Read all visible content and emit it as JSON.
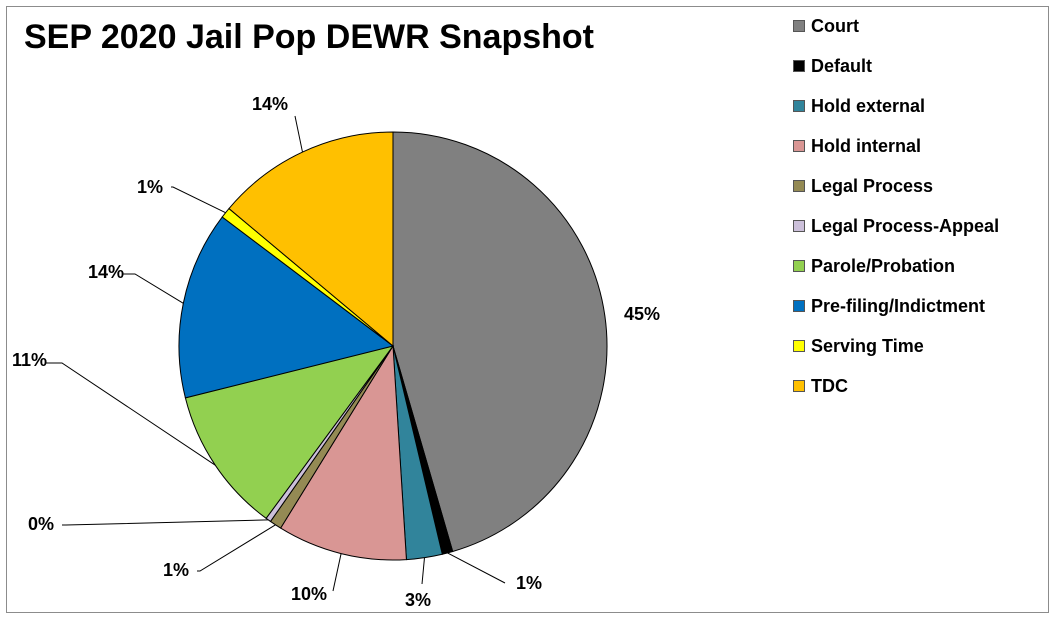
{
  "chart_data": {
    "type": "pie",
    "title": "SEP 2020 Jail Pop DEWR Snapshot",
    "legend_position": "right",
    "categories": [
      "Court",
      "Default",
      "Hold external",
      "Hold internal",
      "Legal Process",
      "Legal Process-Appeal",
      "Parole/Probation",
      "Pre-filing/Indictment",
      "Serving Time",
      "TDC"
    ],
    "values": [
      45.5,
      0.8,
      2.7,
      9.8,
      0.9,
      0.4,
      11.0,
      14.2,
      0.8,
      13.9
    ],
    "data_labels": [
      "45%",
      "1%",
      "3%",
      "10%",
      "1%",
      "0%",
      "11%",
      "14%",
      "1%",
      "14%"
    ],
    "colors": [
      "#808080",
      "#000000",
      "#31849b",
      "#d99694",
      "#948a54",
      "#ccc0da",
      "#92d050",
      "#0070c0",
      "#ffff00",
      "#ffc000"
    ]
  }
}
